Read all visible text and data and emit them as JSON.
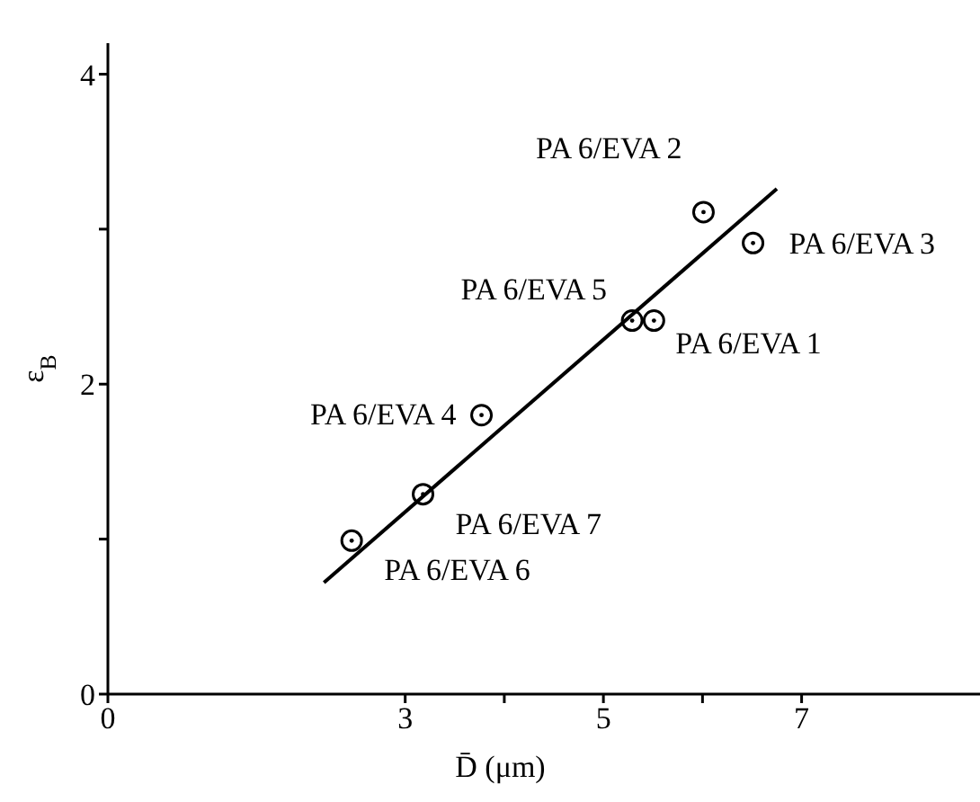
{
  "chart_data": {
    "type": "scatter",
    "xlabel": "D̄ (μm)",
    "ylabel": "ε$_{B}$",
    "xlim": [
      0,
      8.8
    ],
    "xticks": [
      0,
      3,
      {
        "value": 4,
        "label": null
      },
      5,
      {
        "value": 6,
        "label": null
      },
      7
    ],
    "ylim": [
      0,
      4.2
    ],
    "yticks": [
      0,
      {
        "value": 1,
        "label": null
      },
      2,
      {
        "value": 3,
        "label": null
      },
      4
    ],
    "grid": false,
    "legend": false,
    "marker": "circle",
    "series": [
      {
        "color": "#000000",
        "x": [
          2.46,
          3.18,
          3.77,
          5.29,
          5.51,
          6.01,
          6.51
        ],
        "values": [
          0.99,
          1.29,
          1.8,
          2.41,
          2.41,
          3.11,
          2.91
        ]
      },
      {
        "type": "line",
        "color": "#000000",
        "line_style": "solid",
        "marker": "none",
        "x": [
          2.18,
          6.75
        ],
        "values": [
          0.72,
          3.26
        ]
      }
    ],
    "annotations": [
      {
        "text": "PA 6/EVA 6",
        "x": 2.46,
        "y": 0.99
      },
      {
        "text": "PA 6/EVA 7",
        "x": 3.18,
        "y": 1.29
      },
      {
        "text": "PA 6/EVA 4",
        "x": 3.77,
        "y": 1.8
      },
      {
        "text": "PA 6/EVA 5",
        "x": 5.29,
        "y": 2.41
      },
      {
        "text": "PA 6/EVA 1",
        "x": 5.51,
        "y": 2.41
      },
      {
        "text": "PA 6/EVA 2",
        "x": 6.01,
        "y": 3.11
      },
      {
        "text": "PA 6/EVA 3",
        "x": 6.51,
        "y": 2.91
      }
    ]
  }
}
